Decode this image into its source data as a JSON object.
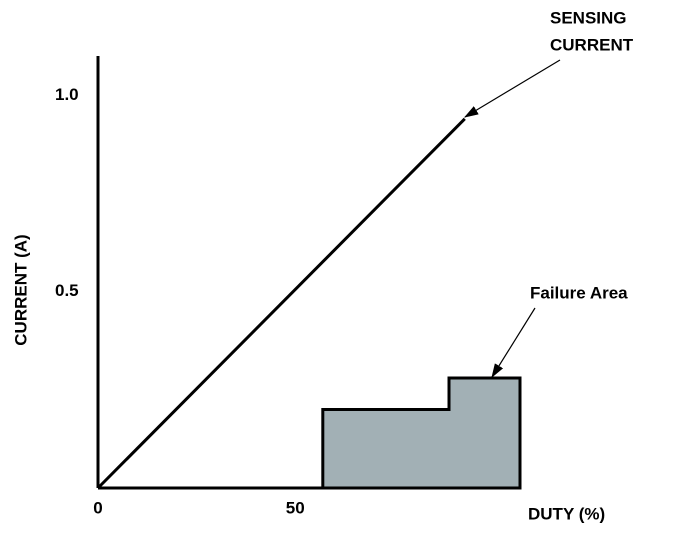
{
  "chart_data": {
    "type": "line",
    "y_label": "CURRENT (A)",
    "x_label": "DUTY (%)",
    "xlim": [
      0,
      107
    ],
    "ylim": [
      0,
      1.1
    ],
    "xticks": [
      0,
      50
    ],
    "yticks": [
      0.5,
      {
        "value": 1,
        "label": "1.0"
      }
    ],
    "series": [
      {
        "color": "#000000",
        "x": [
          0,
          93
        ],
        "values": [
          0,
          0.94
        ]
      }
    ],
    "failure_area": {
      "color": "#a2b0b5",
      "x": [
        57,
        57,
        89,
        89,
        107,
        107
      ],
      "values": [
        0,
        0.2,
        0.2,
        0.28,
        0.28,
        0
      ]
    },
    "annotations": [
      {
        "lines": [
          "SENSING",
          "CURRENT"
        ]
      },
      {
        "lines": [
          "Failure Area"
        ]
      }
    ]
  }
}
